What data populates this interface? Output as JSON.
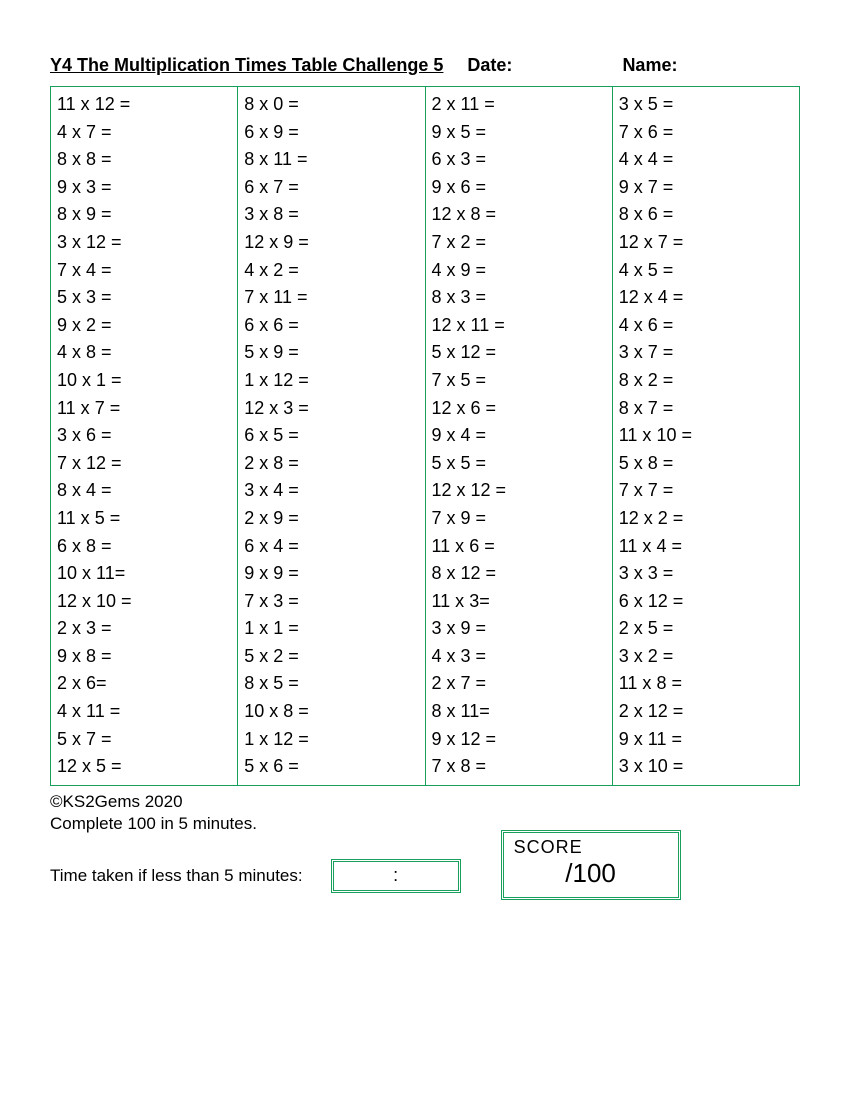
{
  "header": {
    "title": "Y4 The Multiplication Times Table Challenge 5",
    "date_label": "Date:",
    "name_label": "Name:"
  },
  "colors": {
    "border": "#1a9e5b",
    "background": "#ffffff",
    "text": "#000000"
  },
  "table": {
    "type": "table",
    "columns": 4,
    "rows": 25,
    "cells": {
      "col1": [
        "11 x 12 =",
        "4 x 7 =",
        "8 x 8 =",
        "9 x 3 =",
        "8 x 9 =",
        "3 x 12 =",
        "7 x 4 =",
        "5 x 3 =",
        "9 x 2 =",
        "4 x 8 =",
        "10 x 1 =",
        "11 x 7 =",
        "3 x 6 =",
        "7 x 12 =",
        "8 x 4 =",
        "11 x 5 =",
        "6 x 8 =",
        "10 x 11=",
        "12 x 10 =",
        "2 x 3 =",
        "9 x 8 =",
        "2 x 6=",
        "4 x 11 =",
        "5 x 7 =",
        "12 x 5 ="
      ],
      "col2": [
        "8 x 0 =",
        "6 x 9 =",
        "8 x 11  =",
        "6 x 7 =",
        "3 x 8 =",
        "12 x 9 =",
        "4 x 2 =",
        "7 x 11 =",
        "6 x 6 =",
        "5 x 9 =",
        "1 x 12 =",
        "12 x 3 =",
        "6 x 5 =",
        "2 x 8 =",
        "3 x 4 =",
        "2 x 9 =",
        "6 x 4 =",
        "9 x 9 =",
        "7 x 3 =",
        "1 x 1 =",
        "5 x 2 =",
        "8 x 5 =",
        "10 x 8 =",
        "1 x 12 =",
        "5 x 6 ="
      ],
      "col3": [
        "2  x 11 =",
        "9 x 5 =",
        "6 x 3 =",
        "9 x 6 =",
        "12 x 8 =",
        "7 x 2 =",
        "4 x 9 =",
        "8 x 3 =",
        "12 x 11 =",
        "5 x 12 =",
        "7 x 5 =",
        "12 x 6 =",
        "9 x 4 =",
        "5 x 5 =",
        "12 x 12 =",
        "7 x 9 =",
        "11 x 6 =",
        "8 x 12 =",
        "11 x 3=",
        "3 x 9 =",
        "4 x 3 =",
        "2 x 7 =",
        "8 x 11=",
        "9 x 12 =",
        "7 x 8 ="
      ],
      "col4": [
        "3 x 5 =",
        "7 x 6 =",
        "4 x 4 =",
        "9 x 7 =",
        "8 x 6 =",
        "12 x 7 =",
        "4 x 5 =",
        "12 x 4 =",
        "4 x 6 =",
        "3 x 7 =",
        "8 x 2 =",
        "8 x 7 =",
        "11 x 10 =",
        "5 x 8 =",
        "7 x 7 =",
        "12 x 2 =",
        "11 x 4 =",
        "3 x 3 =",
        "6 x 12 =",
        "2 x 5 =",
        "3 x 2 =",
        "11 x 8 =",
        "2 x 12 =",
        "9 x 11 =",
        "3 x 10 ="
      ]
    }
  },
  "footer": {
    "copyright": "©KS2Gems 2020",
    "instruction": "Complete 100 in 5 minutes.",
    "time_label": "Time taken if less than 5 minutes:",
    "time_value": ":",
    "score_label": "SCORE",
    "score_value": "/100"
  }
}
